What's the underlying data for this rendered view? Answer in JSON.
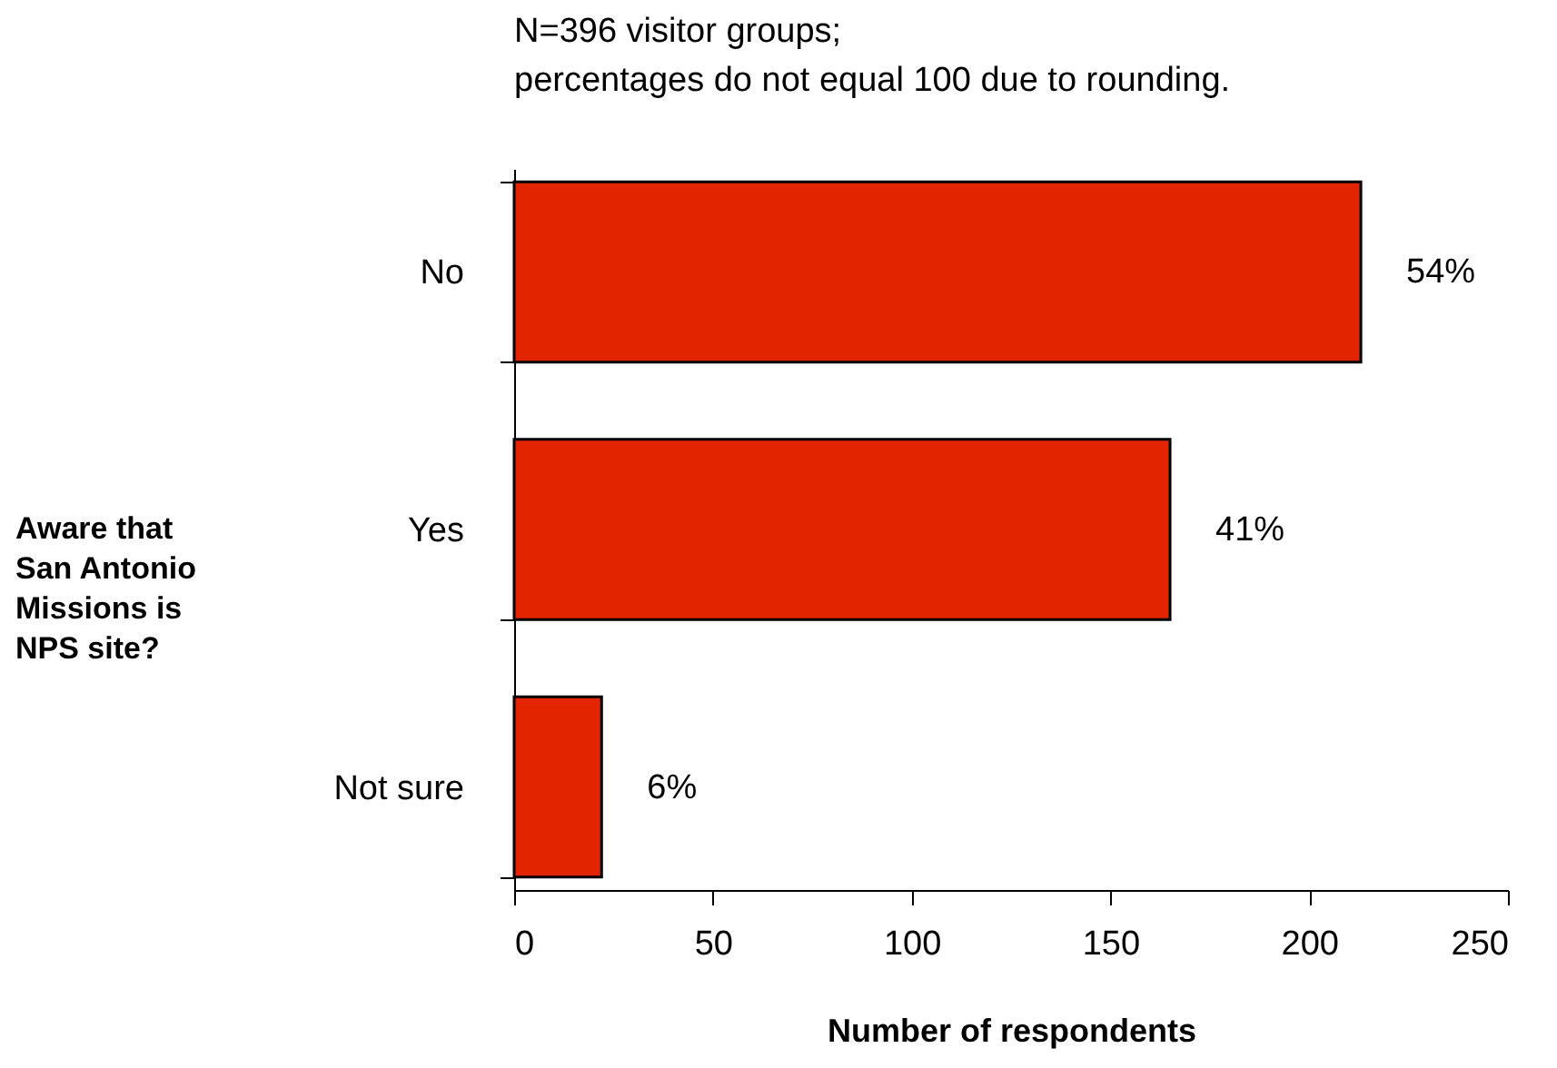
{
  "chart_data": {
    "type": "bar",
    "orientation": "horizontal",
    "annotations": [
      "N=396 visitor groups;",
      " percentages do not equal 100 due to rounding.",
      {
        "text": "54%",
        "x": 213,
        "y": "No"
      },
      {
        "text": "41%",
        "x": 165,
        "y": "Yes"
      },
      {
        "text": "6%",
        "x": 22,
        "y": "Not sure"
      }
    ],
    "ylabel": "Aware that San Antonio Missions is NPS site?",
    "xlabel": "Number of respondents",
    "categories": [
      "No",
      "Yes",
      "Not sure"
    ],
    "values": [
      213,
      165,
      22
    ],
    "color": "#e32400",
    "xlim": [
      0,
      250
    ],
    "xticks": [
      0,
      50,
      100,
      150,
      200,
      250
    ],
    "grid": false
  }
}
